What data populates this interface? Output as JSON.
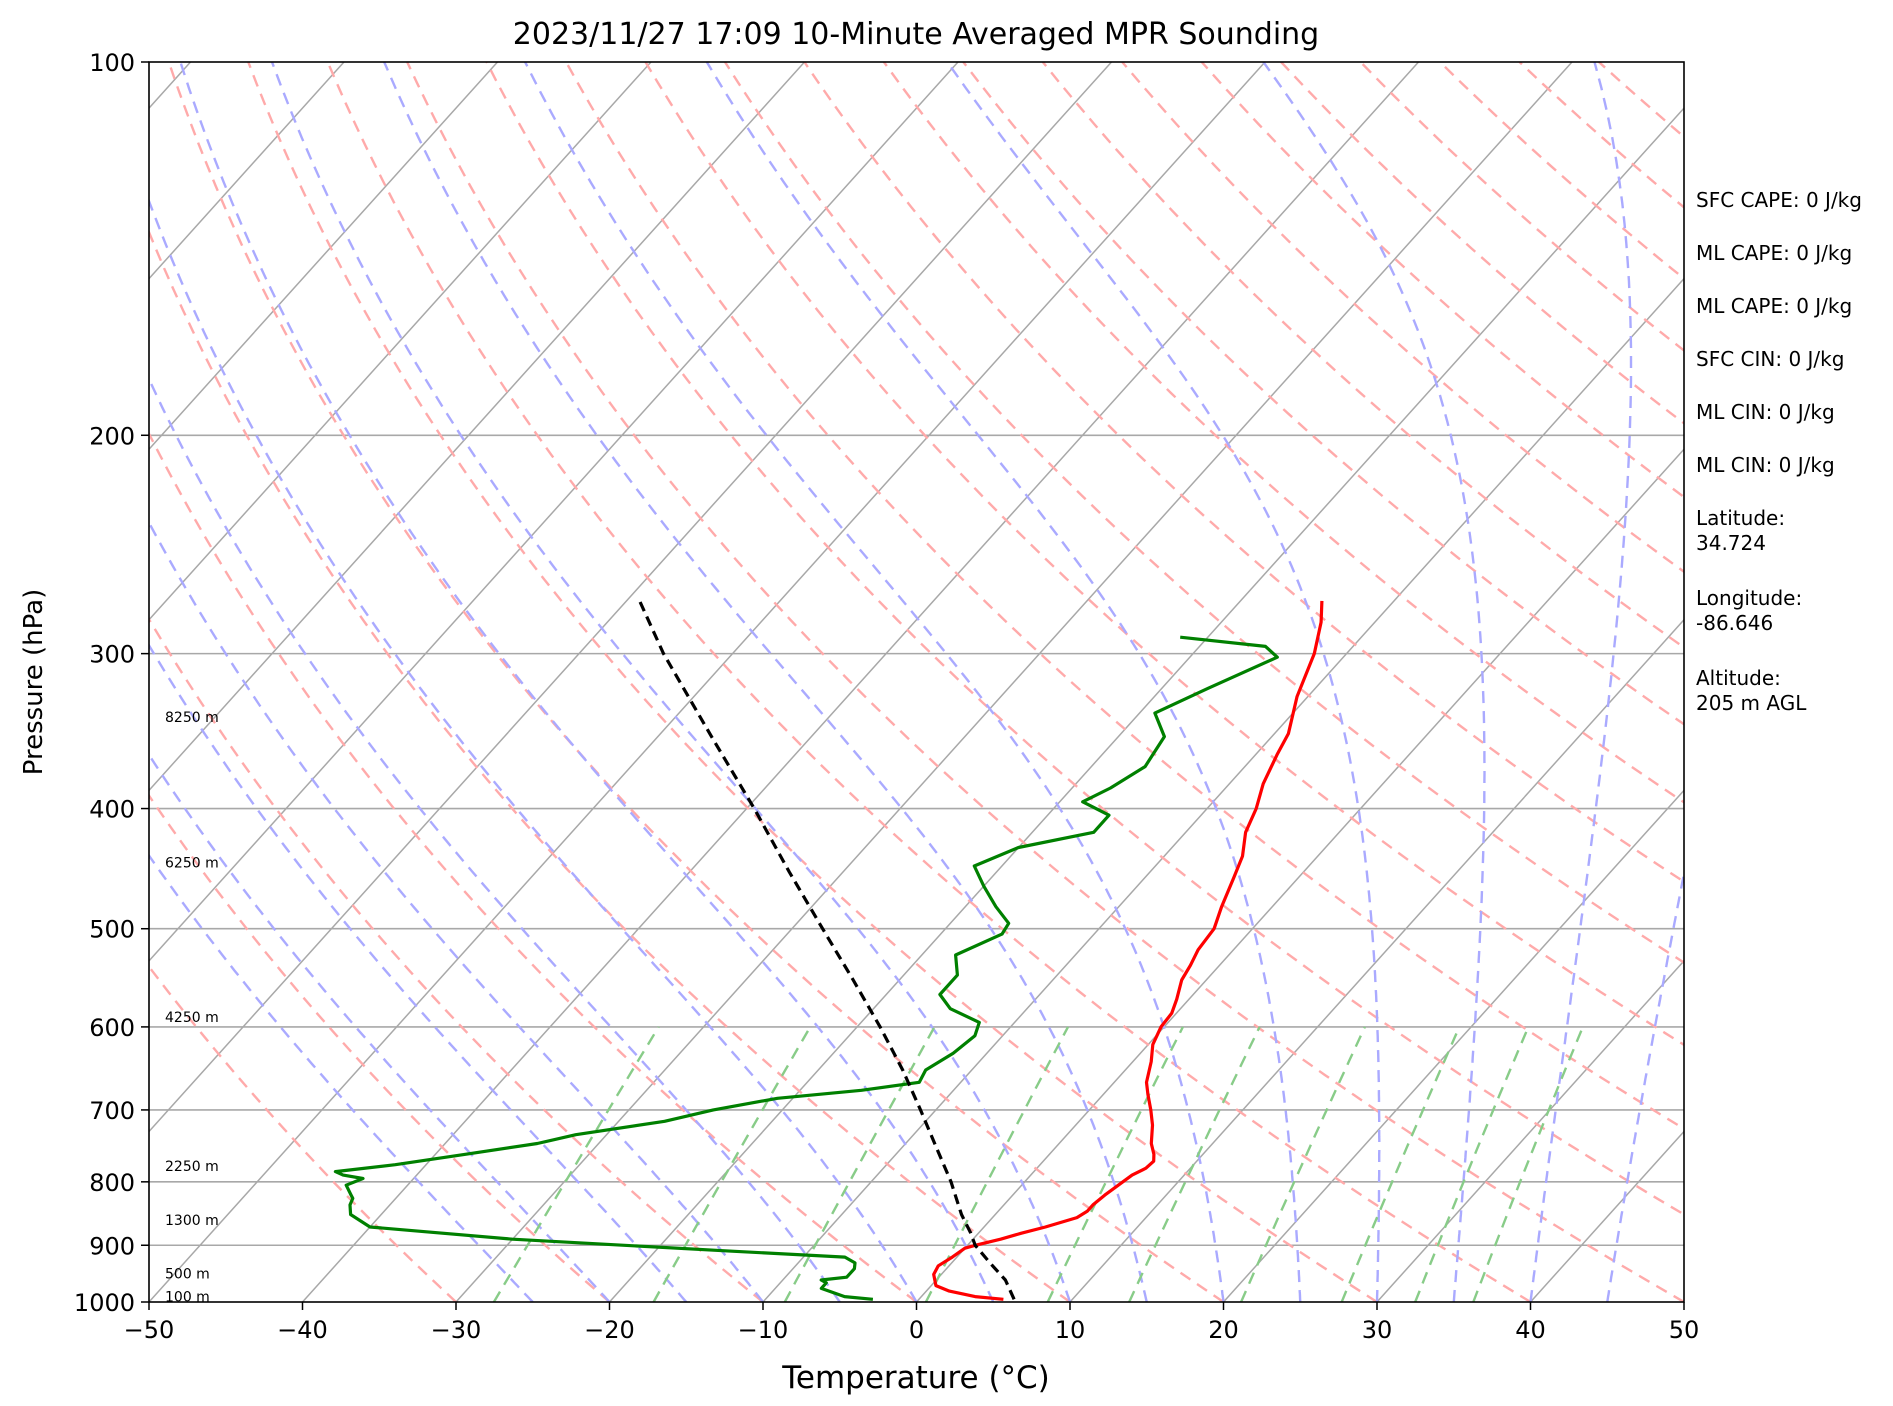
{
  "chart_data": {
    "type": "line",
    "subtype": "skew-T log-P diagram",
    "title": "2023/11/27 17:09 10-Minute Averaged MPR Sounding",
    "xlabel": "Temperature (°C)",
    "ylabel": "Pressure (hPa)",
    "xlim": [
      -50,
      50
    ],
    "ylim": [
      1000,
      100
    ],
    "y_scale": "log",
    "x_ticks": [
      "−50",
      "−40",
      "−30",
      "−20",
      "−10",
      "0",
      "10",
      "20",
      "30",
      "40",
      "50"
    ],
    "y_ticks": [
      "100",
      "200",
      "300",
      "400",
      "500",
      "600",
      "700",
      "800",
      "900",
      "1000"
    ],
    "grid": true,
    "colors": {
      "temperature": "#ff0000",
      "dewpoint": "#008000",
      "parcel": "#000000",
      "isotherms": "#a8a8a8",
      "dry_adiabats": "#ffaaaa",
      "moist_adiabats": "#aaaaff",
      "mixing_ratio": "#88cc88"
    },
    "height_labels": [
      {
        "text": "100 m",
        "p": 992
      },
      {
        "text": "500 m",
        "p": 950
      },
      {
        "text": "1300 m",
        "p": 860
      },
      {
        "text": "2250 m",
        "p": 778
      },
      {
        "text": "4250 m",
        "p": 590
      },
      {
        "text": "6250 m",
        "p": 443
      },
      {
        "text": "8250 m",
        "p": 338
      }
    ],
    "series": [
      {
        "key": "temperature",
        "points": [
          [
            995,
            5.5
          ],
          [
            990,
            3.5
          ],
          [
            980,
            1.5
          ],
          [
            970,
            0.3
          ],
          [
            950,
            -0.5
          ],
          [
            935,
            -0.7
          ],
          [
            920,
            -0.3
          ],
          [
            905,
            0.0
          ],
          [
            900,
            0.5
          ],
          [
            890,
            1.8
          ],
          [
            880,
            2.8
          ],
          [
            870,
            4.0
          ],
          [
            855,
            5.5
          ],
          [
            845,
            5.8
          ],
          [
            835,
            5.8
          ],
          [
            820,
            6.0
          ],
          [
            805,
            6.3
          ],
          [
            790,
            6.6
          ],
          [
            780,
            7.1
          ],
          [
            770,
            7.2
          ],
          [
            760,
            6.8
          ],
          [
            745,
            6.0
          ],
          [
            720,
            5.0
          ],
          [
            700,
            4.0
          ],
          [
            680,
            2.9
          ],
          [
            665,
            2.1
          ],
          [
            640,
            1.2
          ],
          [
            620,
            0.3
          ],
          [
            600,
            -0.2
          ],
          [
            585,
            -0.3
          ],
          [
            570,
            -0.8
          ],
          [
            550,
            -1.6
          ],
          [
            535,
            -1.9
          ],
          [
            520,
            -2.3
          ],
          [
            500,
            -2.5
          ],
          [
            480,
            -3.3
          ],
          [
            455,
            -4.2
          ],
          [
            437,
            -4.9
          ],
          [
            418,
            -6.1
          ],
          [
            400,
            -6.8
          ],
          [
            382,
            -7.8
          ],
          [
            362,
            -8.6
          ],
          [
            348,
            -9.1
          ],
          [
            325,
            -10.7
          ],
          [
            300,
            -12.1
          ],
          [
            283,
            -13.5
          ],
          [
            272,
            -14.7
          ]
        ]
      },
      {
        "key": "dewpoint",
        "points": [
          [
            995,
            -3.0
          ],
          [
            990,
            -5.0
          ],
          [
            975,
            -7.0
          ],
          [
            965,
            -7.0
          ],
          [
            960,
            -7.5
          ],
          [
            955,
            -6.0
          ],
          [
            940,
            -6.0
          ],
          [
            930,
            -6.3
          ],
          [
            920,
            -7.3
          ],
          [
            910,
            -15.0
          ],
          [
            890,
            -30.0
          ],
          [
            870,
            -40.0
          ],
          [
            850,
            -42.0
          ],
          [
            835,
            -42.6
          ],
          [
            825,
            -42.8
          ],
          [
            820,
            -43.1
          ],
          [
            805,
            -44.0
          ],
          [
            795,
            -43.3
          ],
          [
            790,
            -44.8
          ],
          [
            785,
            -45.5
          ],
          [
            775,
            -42.0
          ],
          [
            760,
            -38.0
          ],
          [
            745,
            -34.0
          ],
          [
            733,
            -32.0
          ],
          [
            715,
            -27.0
          ],
          [
            700,
            -24.5
          ],
          [
            685,
            -21.0
          ],
          [
            675,
            -16.0
          ],
          [
            665,
            -12.7
          ],
          [
            650,
            -13.0
          ],
          [
            630,
            -12.2
          ],
          [
            610,
            -11.8
          ],
          [
            595,
            -12.3
          ],
          [
            580,
            -15.0
          ],
          [
            565,
            -16.5
          ],
          [
            545,
            -16.5
          ],
          [
            525,
            -17.8
          ],
          [
            505,
            -16.0
          ],
          [
            495,
            -16.2
          ],
          [
            480,
            -18.0
          ],
          [
            462,
            -20.0
          ],
          [
            445,
            -21.8
          ],
          [
            430,
            -20.0
          ],
          [
            418,
            -16.0
          ],
          [
            405,
            -16.0
          ],
          [
            395,
            -18.5
          ],
          [
            385,
            -17.5
          ],
          [
            370,
            -16.5
          ],
          [
            350,
            -17.0
          ],
          [
            335,
            -19.0
          ],
          [
            320,
            -17.0
          ],
          [
            302,
            -14.3
          ],
          [
            296,
            -15.7
          ],
          [
            291,
            -21.8
          ]
        ]
      },
      {
        "key": "parcel",
        "points": [
          [
            995,
            6.2
          ],
          [
            960,
            4.5
          ],
          [
            930,
            2.5
          ],
          [
            900,
            0.5
          ],
          [
            880,
            -0.5
          ],
          [
            850,
            -2.2
          ],
          [
            800,
            -4.8
          ],
          [
            750,
            -7.8
          ],
          [
            700,
            -11.0
          ],
          [
            650,
            -14.5
          ],
          [
            600,
            -18.5
          ],
          [
            550,
            -23.0
          ],
          [
            500,
            -28.0
          ],
          [
            450,
            -33.5
          ],
          [
            400,
            -39.5
          ],
          [
            350,
            -46.5
          ],
          [
            300,
            -54.5
          ],
          [
            270,
            -59.5
          ]
        ]
      }
    ],
    "annotations": [
      "SFC CAPE: 0 J/kg",
      "ML CAPE: 0 J/kg",
      "ML CAPE: 0 J/kg",
      "SFC CIN: 0 J/kg",
      "ML CIN: 0 J/kg",
      "ML CIN: 0 J/kg",
      "Latitude:\n34.724",
      "Longitude:\n-86.646",
      "Altitude:\n205 m AGL"
    ]
  }
}
